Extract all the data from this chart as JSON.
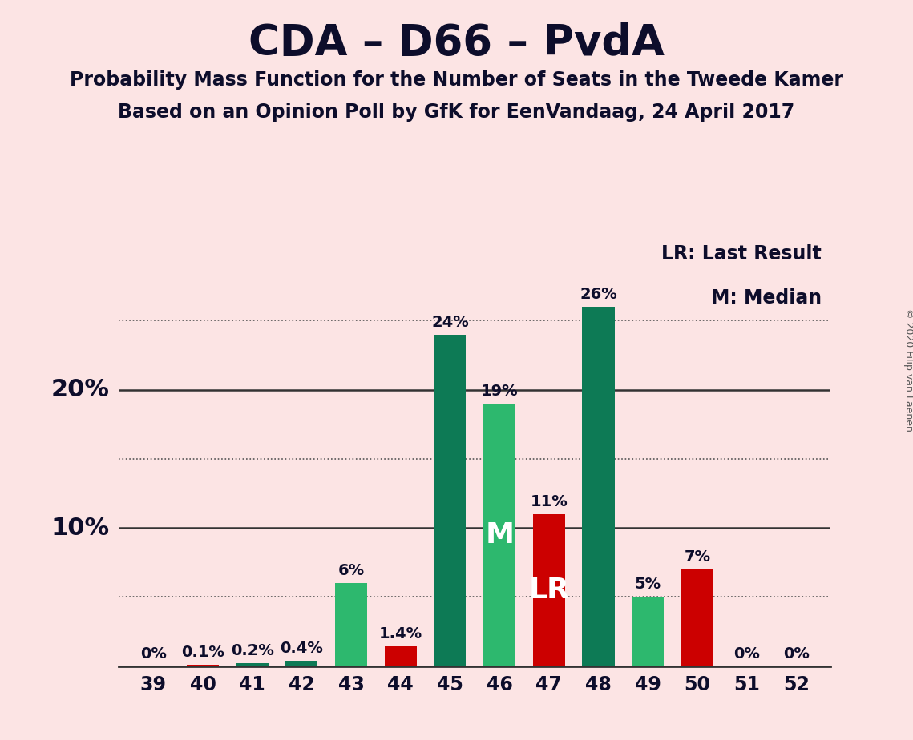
{
  "title": "CDA – D66 – PvdA",
  "subtitle1": "Probability Mass Function for the Number of Seats in the Tweede Kamer",
  "subtitle2": "Based on an Opinion Poll by GfK for EenVandaag, 24 April 2017",
  "copyright": "© 2020 Filip van Laenen",
  "legend_lr": "LR: Last Result",
  "legend_m": "M: Median",
  "categories": [
    39,
    40,
    41,
    42,
    43,
    44,
    45,
    46,
    47,
    48,
    49,
    50,
    51,
    52
  ],
  "values": [
    0,
    0.1,
    0.2,
    0.4,
    6,
    1.4,
    24,
    19,
    11,
    26,
    5,
    7,
    0,
    0
  ],
  "bar_colors": [
    "#0d7a55",
    "#cc0000",
    "#0d7a55",
    "#0d7a55",
    "#2db86e",
    "#cc0000",
    "#0d7a55",
    "#2db86e",
    "#cc0000",
    "#0d7a55",
    "#2db86e",
    "#cc0000",
    "#0d7a55",
    "#0d7a55"
  ],
  "label_texts": [
    "0%",
    "0.1%",
    "0.2%",
    "0.4%",
    "6%",
    "1.4%",
    "24%",
    "19%",
    "11%",
    "26%",
    "5%",
    "7%",
    "0%",
    "0%"
  ],
  "median_seat": 46,
  "lr_seat": 47,
  "background_color": "#fce4e4",
  "text_color": "#0d0d2b",
  "ylim": [
    0,
    30
  ],
  "solid_grid": [
    10,
    20
  ],
  "dotted_grid": [
    5,
    15,
    25
  ],
  "bar_width": 0.65
}
